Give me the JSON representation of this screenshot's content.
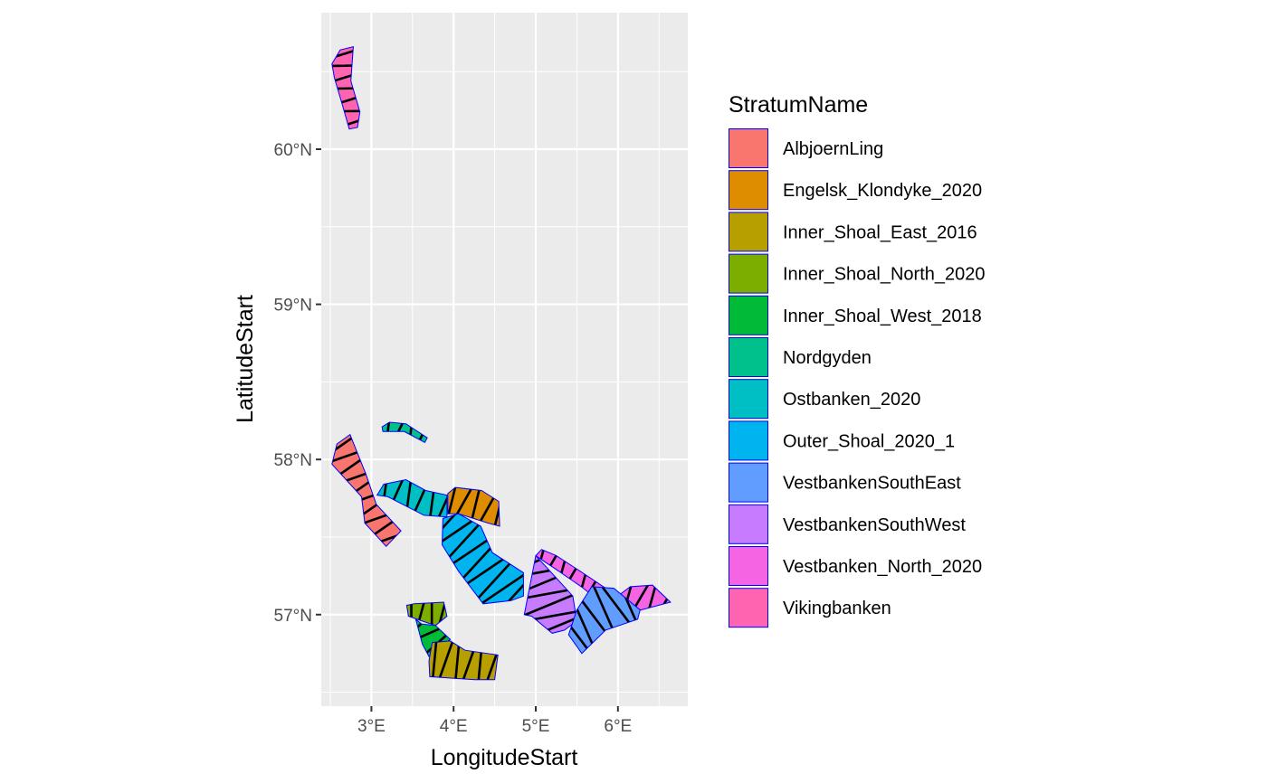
{
  "chart_data": {
    "type": "map",
    "xlabel": "LongitudeStart",
    "ylabel": "LatitudeStart",
    "xlim": [
      2.39,
      6.85
    ],
    "ylim": [
      56.41,
      60.88
    ],
    "x_ticks": [
      {
        "value": 3,
        "label": "3°E"
      },
      {
        "value": 4,
        "label": "4°E"
      },
      {
        "value": 5,
        "label": "5°E"
      },
      {
        "value": 6,
        "label": "6°E"
      }
    ],
    "y_ticks": [
      {
        "value": 57,
        "label": "57°N"
      },
      {
        "value": 58,
        "label": "58°N"
      },
      {
        "value": 59,
        "label": "59°N"
      },
      {
        "value": 60,
        "label": "60°N"
      }
    ],
    "grid": true,
    "legend": {
      "title": "StratumName",
      "placement": "right",
      "entries": [
        {
          "name": "AlbjoernLing",
          "color": "#F8766D"
        },
        {
          "name": "Engelsk_Klondyke_2020",
          "color": "#DE8C00"
        },
        {
          "name": "Inner_Shoal_East_2016",
          "color": "#B79F00"
        },
        {
          "name": "Inner_Shoal_North_2020",
          "color": "#7CAE00"
        },
        {
          "name": "Inner_Shoal_West_2018",
          "color": "#00BA38"
        },
        {
          "name": "Nordgyden",
          "color": "#00C08B"
        },
        {
          "name": "Ostbanken_2020",
          "color": "#00BFC4"
        },
        {
          "name": "Outer_Shoal_2020_1",
          "color": "#00B4F0"
        },
        {
          "name": "VestbankenSouthEast",
          "color": "#619CFF"
        },
        {
          "name": "VestbankenSouthWest",
          "color": "#C77CFF"
        },
        {
          "name": "Vestbanken_North_2020",
          "color": "#F564E3"
        },
        {
          "name": "Vikingbanken",
          "color": "#FF64B0"
        }
      ]
    },
    "strata": [
      {
        "name": "Vikingbanken",
        "color": "#FF64B0",
        "polygon": [
          [
            2.52,
            60.55
          ],
          [
            2.62,
            60.64
          ],
          [
            2.78,
            60.66
          ],
          [
            2.75,
            60.44
          ],
          [
            2.86,
            60.24
          ],
          [
            2.83,
            60.14
          ],
          [
            2.73,
            60.13
          ],
          [
            2.65,
            60.28
          ],
          [
            2.55,
            60.46
          ]
        ]
      },
      {
        "name": "AlbjoernLing",
        "color": "#F8766D",
        "polygon": [
          [
            2.52,
            57.97
          ],
          [
            2.58,
            58.1
          ],
          [
            2.74,
            58.16
          ],
          [
            2.93,
            57.91
          ],
          [
            3.06,
            57.71
          ],
          [
            3.36,
            57.54
          ],
          [
            3.18,
            57.44
          ],
          [
            2.92,
            57.59
          ],
          [
            2.88,
            57.76
          ]
        ]
      },
      {
        "name": "Nordgyden",
        "color": "#00C08B",
        "polygon": [
          [
            3.13,
            58.21
          ],
          [
            3.22,
            58.24
          ],
          [
            3.42,
            58.23
          ],
          [
            3.68,
            58.14
          ],
          [
            3.65,
            58.11
          ],
          [
            3.4,
            58.18
          ],
          [
            3.14,
            58.18
          ]
        ]
      },
      {
        "name": "Ostbanken_2020",
        "color": "#00BFC4",
        "polygon": [
          [
            3.07,
            57.77
          ],
          [
            3.15,
            57.84
          ],
          [
            3.42,
            57.87
          ],
          [
            3.66,
            57.8
          ],
          [
            3.92,
            57.77
          ],
          [
            3.92,
            57.63
          ],
          [
            3.64,
            57.64
          ],
          [
            3.2,
            57.76
          ]
        ]
      },
      {
        "name": "Engelsk_Klondyke_2020",
        "color": "#DE8C00",
        "polygon": [
          [
            3.93,
            57.78
          ],
          [
            4.02,
            57.82
          ],
          [
            4.34,
            57.8
          ],
          [
            4.55,
            57.73
          ],
          [
            4.56,
            57.57
          ],
          [
            4.42,
            57.59
          ],
          [
            4.06,
            57.65
          ],
          [
            3.93,
            57.65
          ]
        ]
      },
      {
        "name": "Outer_Shoal_2020_1",
        "color": "#00B4F0",
        "polygon": [
          [
            3.87,
            57.62
          ],
          [
            4.06,
            57.65
          ],
          [
            4.33,
            57.57
          ],
          [
            4.47,
            57.4
          ],
          [
            4.85,
            57.27
          ],
          [
            4.85,
            57.12
          ],
          [
            4.7,
            57.09
          ],
          [
            4.36,
            57.07
          ],
          [
            4.06,
            57.28
          ],
          [
            3.86,
            57.45
          ]
        ]
      },
      {
        "name": "VestbankenSouthWest",
        "color": "#C77CFF",
        "polygon": [
          [
            4.86,
            57.0
          ],
          [
            5.0,
            57.38
          ],
          [
            5.14,
            57.3
          ],
          [
            5.45,
            57.12
          ],
          [
            5.5,
            56.96
          ],
          [
            5.35,
            56.9
          ],
          [
            5.2,
            56.88
          ],
          [
            4.95,
            56.99
          ]
        ]
      },
      {
        "name": "Vestbanken_North_2020",
        "color": "#F564E3",
        "polygon": [
          [
            5.0,
            57.38
          ],
          [
            5.07,
            57.42
          ],
          [
            5.25,
            57.38
          ],
          [
            5.54,
            57.28
          ],
          [
            5.85,
            57.17
          ],
          [
            6.0,
            57.12
          ],
          [
            6.15,
            57.18
          ],
          [
            6.42,
            57.19
          ],
          [
            6.64,
            57.08
          ],
          [
            6.28,
            57.03
          ],
          [
            6.04,
            57.02
          ],
          [
            5.74,
            57.1
          ],
          [
            5.58,
            57.17
          ],
          [
            5.28,
            57.28
          ]
        ]
      },
      {
        "name": "VestbankenSouthEast",
        "color": "#619CFF",
        "polygon": [
          [
            5.5,
            57.03
          ],
          [
            5.68,
            57.18
          ],
          [
            5.95,
            57.17
          ],
          [
            6.27,
            57.03
          ],
          [
            6.24,
            56.97
          ],
          [
            5.85,
            56.9
          ],
          [
            5.56,
            56.75
          ],
          [
            5.4,
            56.87
          ]
        ]
      },
      {
        "name": "Inner_Shoal_North_2020",
        "color": "#7CAE00",
        "polygon": [
          [
            3.43,
            57.06
          ],
          [
            3.52,
            57.07
          ],
          [
            3.88,
            57.08
          ],
          [
            3.92,
            56.99
          ],
          [
            3.78,
            56.93
          ],
          [
            3.61,
            56.96
          ],
          [
            3.45,
            56.99
          ]
        ]
      },
      {
        "name": "Inner_Shoal_West_2018",
        "color": "#00BA38",
        "polygon": [
          [
            3.54,
            56.97
          ],
          [
            3.61,
            56.94
          ],
          [
            3.78,
            56.93
          ],
          [
            3.96,
            56.84
          ],
          [
            3.82,
            56.78
          ],
          [
            3.7,
            56.73
          ],
          [
            3.62,
            56.81
          ]
        ]
      },
      {
        "name": "Inner_Shoal_East_2016",
        "color": "#B79F00",
        "polygon": [
          [
            3.7,
            56.7
          ],
          [
            3.74,
            56.82
          ],
          [
            3.96,
            56.83
          ],
          [
            4.14,
            56.77
          ],
          [
            4.54,
            56.74
          ],
          [
            4.5,
            56.58
          ],
          [
            4.26,
            56.58
          ],
          [
            3.71,
            56.6
          ]
        ]
      }
    ]
  }
}
